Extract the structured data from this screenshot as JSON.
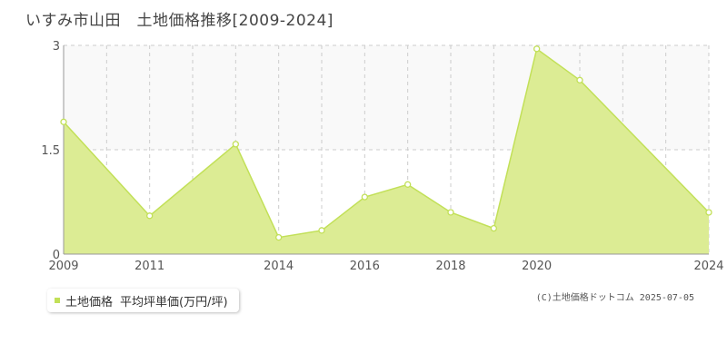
{
  "title": "いすみ市山田　土地価格推移[2009-2024]",
  "legend": {
    "series_label": "土地価格",
    "unit_label": "平均坪単価(万円/坪)"
  },
  "credit": "(C)土地価格ドットコム 2025-07-05",
  "colors": {
    "fill": "#dcec94",
    "line": "#c2e058",
    "marker_fill": "#ffffff",
    "grid": "#cccccc",
    "axis": "#999999"
  },
  "chart_data": {
    "type": "area",
    "title": "いすみ市山田　土地価格推移[2009-2024]",
    "x": [
      2009,
      2011,
      2013,
      2014,
      2015,
      2016,
      2017,
      2018,
      2019,
      2020,
      2021,
      2024
    ],
    "xticks": [
      2009,
      2011,
      2014,
      2016,
      2018,
      2020,
      2024
    ],
    "xlim": [
      2009,
      2024
    ],
    "ylim": [
      0,
      3
    ],
    "yticks": [
      0,
      1.5,
      3
    ],
    "ytick_labels": [
      "0",
      "1.5",
      "3"
    ],
    "series": [
      {
        "name": "土地価格",
        "values": [
          1.9,
          0.55,
          1.58,
          0.24,
          0.34,
          0.82,
          1.0,
          0.6,
          0.37,
          2.95,
          2.5,
          0.6
        ]
      }
    ],
    "legend": "bottom-left",
    "grid": true
  }
}
